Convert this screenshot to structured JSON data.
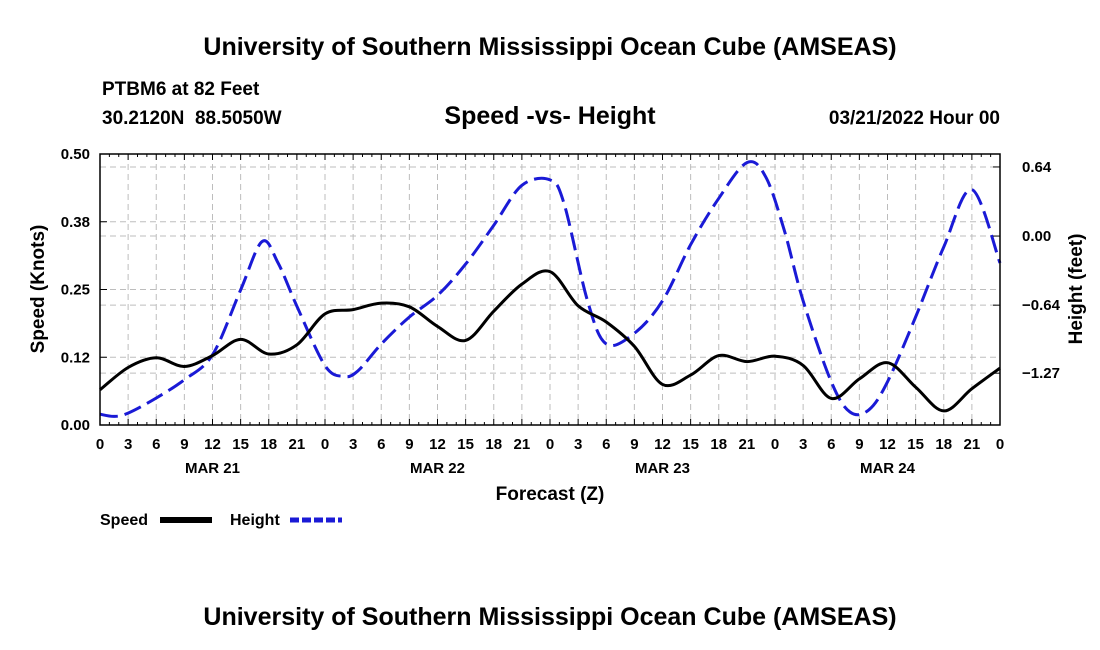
{
  "header": {
    "title": "University of Southern Mississippi Ocean Cube (AMSEAS)",
    "station": "PTBM6 at 82 Feet",
    "coords": "30.2120N  88.5050W",
    "subtitle": "Speed -vs- Height",
    "datetime": "03/21/2022 Hour 00"
  },
  "footer": {
    "title": "University of Southern Mississippi Ocean Cube (AMSEAS)"
  },
  "legend": {
    "speed_label": "Speed",
    "height_label": "Height"
  },
  "colors": {
    "speed": "#000000",
    "height": "#1a1ad6",
    "grid": "#bdbdbd"
  },
  "chart_data": {
    "type": "line",
    "xlabel": "Forecast (Z)",
    "ylabel": "Speed (Knots)",
    "y2label": "Height (feet)",
    "xlim": [
      0,
      96
    ],
    "ylim": [
      0,
      0.5
    ],
    "y2lim": [
      -1.75,
      0.76
    ],
    "x_ticks": [
      0,
      3,
      6,
      9,
      12,
      15,
      18,
      21,
      24,
      27,
      30,
      33,
      36,
      39,
      42,
      45,
      48,
      51,
      54,
      57,
      60,
      63,
      66,
      69,
      72,
      75,
      78,
      81,
      84,
      87,
      90,
      93,
      96
    ],
    "x_tick_labels": [
      "0",
      "3",
      "6",
      "9",
      "12",
      "15",
      "18",
      "21",
      "0",
      "3",
      "6",
      "9",
      "12",
      "15",
      "18",
      "21",
      "0",
      "3",
      "6",
      "9",
      "12",
      "15",
      "18",
      "21",
      "0",
      "3",
      "6",
      "9",
      "12",
      "15",
      "18",
      "21",
      "0"
    ],
    "day_labels": [
      {
        "x": 12,
        "label": "MAR 21"
      },
      {
        "x": 36,
        "label": "MAR 22"
      },
      {
        "x": 60,
        "label": "MAR 23"
      },
      {
        "x": 84,
        "label": "MAR 24"
      }
    ],
    "y_ticks": [
      0.0,
      0.125,
      0.25,
      0.375,
      0.5
    ],
    "y_tick_labels": [
      "0.00",
      "0.12",
      "0.25",
      "0.38",
      "0.50"
    ],
    "y2_ticks": [
      0.64,
      0.0,
      -0.64,
      -1.27
    ],
    "y2_tick_labels": [
      "0.64",
      "0.00",
      "−0.64",
      "−1.27"
    ],
    "series": [
      {
        "name": "Speed",
        "axis": "left",
        "style": "solid",
        "x": [
          0,
          3,
          6,
          9,
          12,
          15,
          18,
          21,
          24,
          27,
          30,
          33,
          36,
          39,
          42,
          45,
          48,
          51,
          54,
          57,
          60,
          63,
          66,
          69,
          72,
          75,
          78,
          81,
          84,
          87,
          90,
          93,
          96
        ],
        "y": [
          0.065,
          0.106,
          0.124,
          0.108,
          0.128,
          0.158,
          0.131,
          0.148,
          0.205,
          0.213,
          0.225,
          0.218,
          0.182,
          0.156,
          0.21,
          0.26,
          0.283,
          0.22,
          0.19,
          0.145,
          0.075,
          0.092,
          0.128,
          0.117,
          0.127,
          0.11,
          0.049,
          0.085,
          0.115,
          0.07,
          0.026,
          0.067,
          0.105
        ]
      },
      {
        "name": "Height",
        "axis": "right",
        "style": "dashed",
        "x": [
          0,
          1.5,
          3,
          6,
          9,
          12,
          15,
          17.3,
          19,
          21,
          24,
          26,
          27.5,
          30,
          33,
          36,
          39,
          42,
          45,
          48,
          49.5,
          52,
          54,
          57,
          60,
          63,
          66,
          69,
          71,
          73,
          75,
          78,
          80,
          82,
          84,
          87,
          90,
          93,
          96
        ],
        "y": [
          -1.65,
          -1.67,
          -1.64,
          -1.5,
          -1.33,
          -1.1,
          -0.5,
          -0.05,
          -0.25,
          -0.65,
          -1.2,
          -1.3,
          -1.25,
          -1.0,
          -0.75,
          -0.55,
          -0.26,
          0.1,
          0.47,
          0.52,
          0.3,
          -0.6,
          -1.0,
          -0.9,
          -0.6,
          -0.08,
          0.35,
          0.68,
          0.55,
          0.05,
          -0.6,
          -1.35,
          -1.63,
          -1.61,
          -1.35,
          -0.75,
          -0.1,
          0.43,
          -0.25
        ]
      }
    ]
  }
}
